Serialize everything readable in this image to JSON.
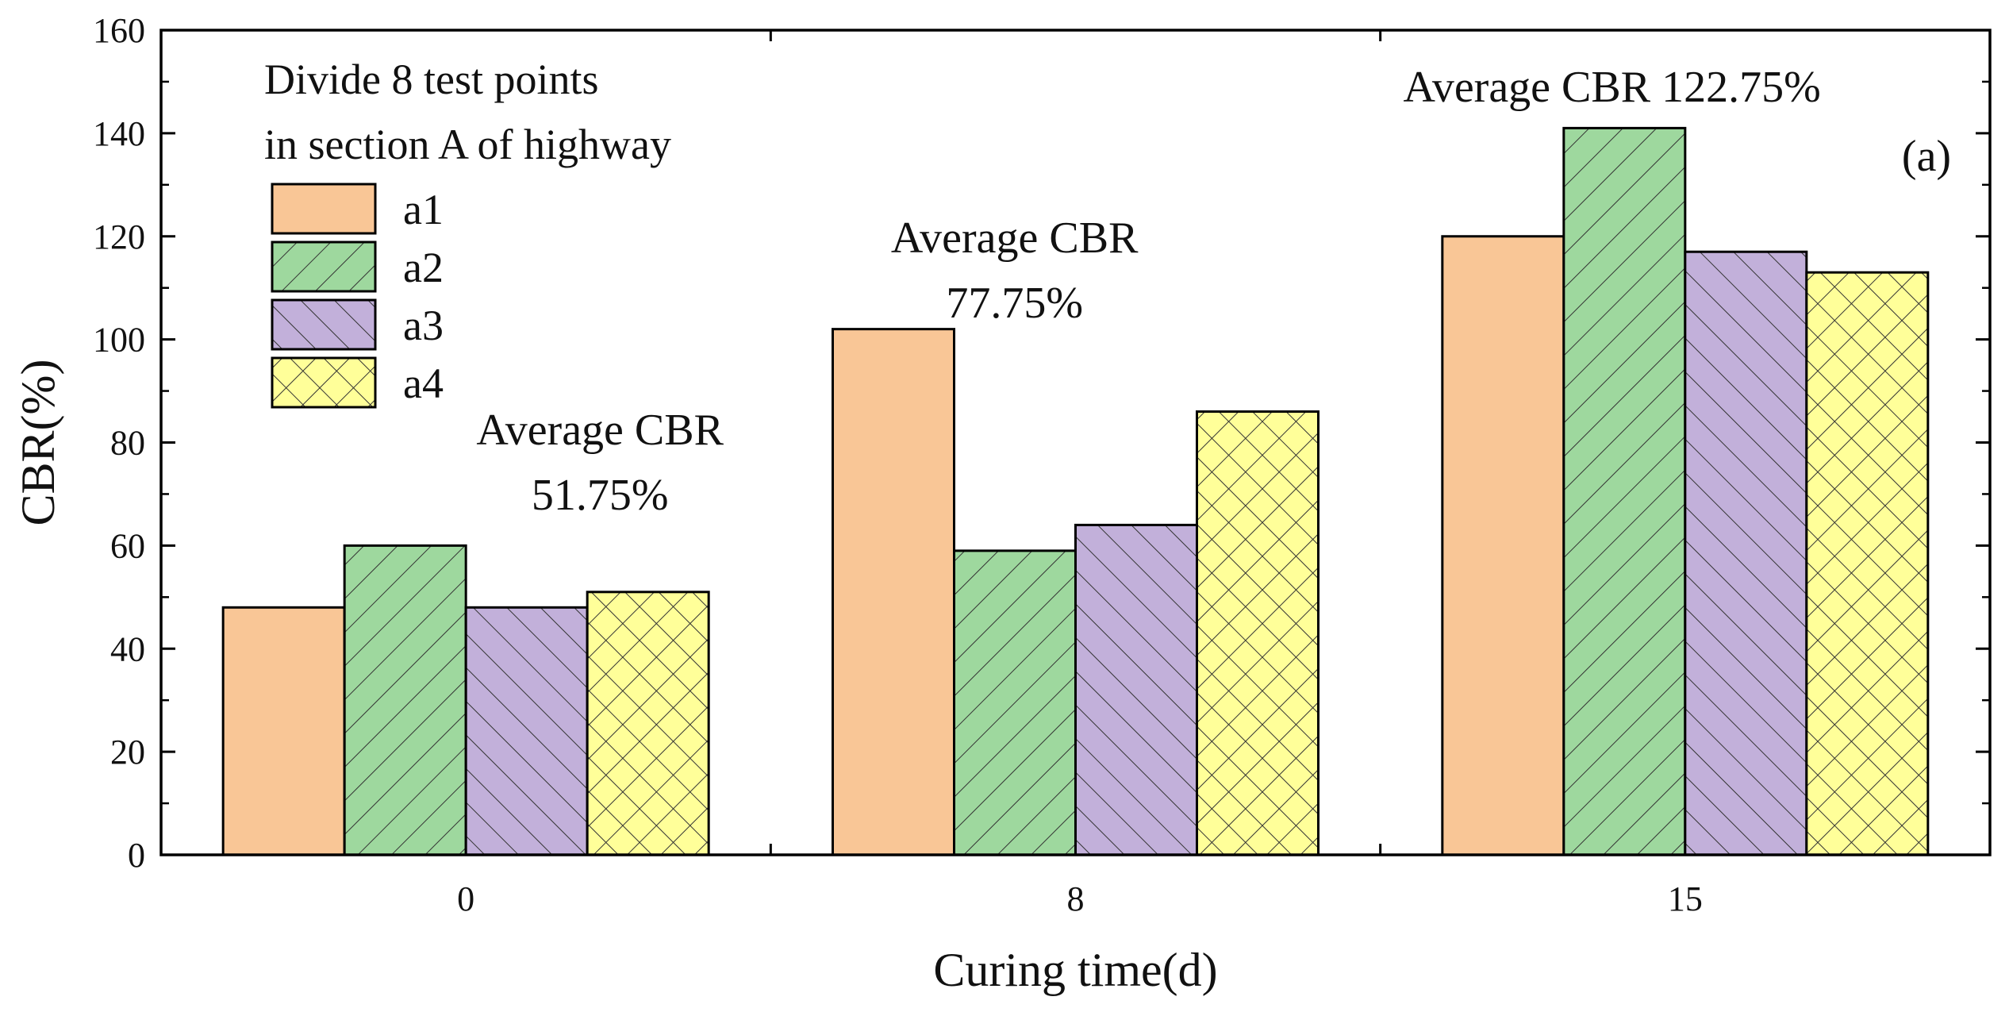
{
  "chart_data": {
    "type": "bar",
    "categories": [
      "0",
      "8",
      "15"
    ],
    "series": [
      {
        "name": "a1",
        "values": [
          48,
          102,
          120
        ],
        "color": "#F9C696",
        "pattern": "none"
      },
      {
        "name": "a2",
        "values": [
          60,
          59,
          141
        ],
        "color": "#9ED89E",
        "pattern": "forward-diagonal"
      },
      {
        "name": "a3",
        "values": [
          48,
          64,
          117
        ],
        "color": "#C2B0DA",
        "pattern": "backward-diagonal"
      },
      {
        "name": "a4",
        "values": [
          51,
          86,
          113
        ],
        "color": "#FFFF99",
        "pattern": "crosshatch"
      }
    ],
    "xlabel": "Curing time(d)",
    "ylabel": "CBR(%)",
    "ylim": [
      0,
      160
    ],
    "yticks": [
      0,
      20,
      40,
      60,
      80,
      100,
      120,
      140,
      160
    ],
    "grid": false,
    "legend": {
      "position": "top-left",
      "title_lines": [
        "Divide 8 test points",
        "in section A of highway"
      ]
    },
    "annotations": [
      {
        "category": "0",
        "lines": [
          "Average CBR",
          "51.75%"
        ]
      },
      {
        "category": "8",
        "lines": [
          "Average CBR",
          "77.75%"
        ]
      },
      {
        "category": "15",
        "lines": [
          "Average CBR 122.75%"
        ]
      }
    ],
    "panel_label": "(a)"
  }
}
